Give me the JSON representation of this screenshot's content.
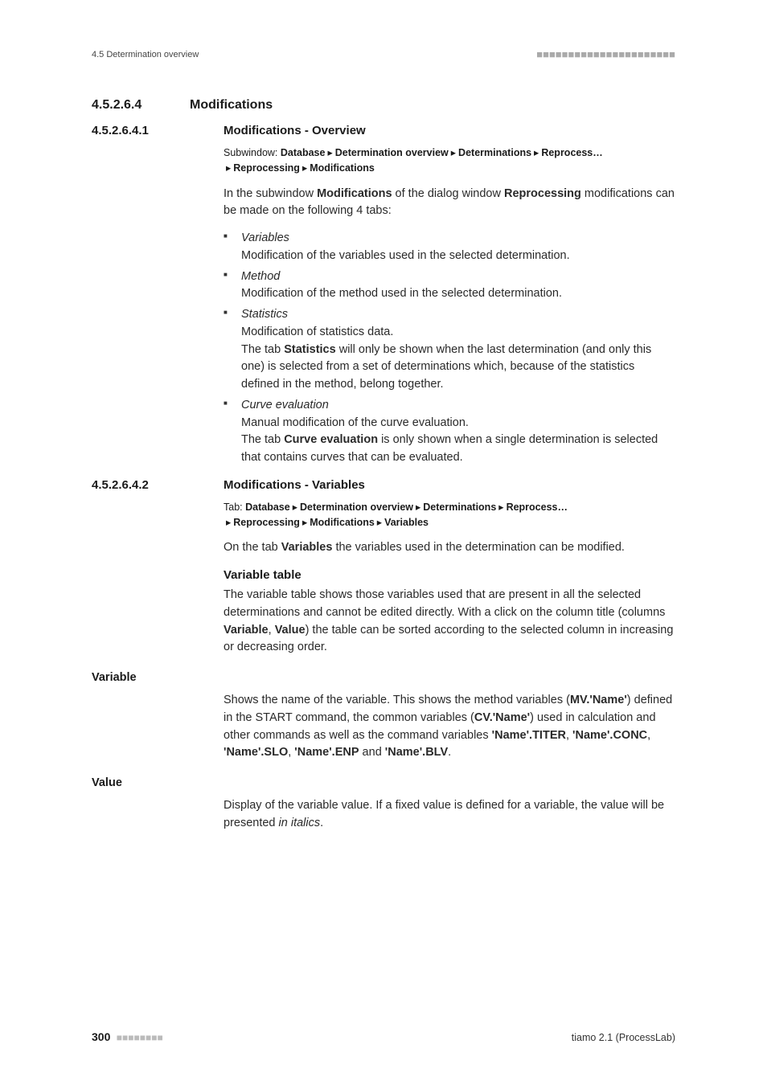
{
  "header": {
    "left": "4.5 Determination overview",
    "dashes": "■■■■■■■■■■■■■■■■■■■■■■"
  },
  "section_h3": {
    "num": "4.5.2.6.4",
    "title": "Modifications"
  },
  "section_1": {
    "num": "4.5.2.6.4.1",
    "title": "Modifications - Overview",
    "breadcrumb_label": "Subwindow: ",
    "breadcrumb_parts": [
      "Database",
      "Determination overview",
      "Determinations",
      "Reprocess…",
      "Reprocessing",
      "Modifications"
    ],
    "intro_prefix": "In the subwindow ",
    "intro_bold1": "Modifications",
    "intro_mid": " of the dialog window ",
    "intro_bold2": "Reprocessing",
    "intro_suffix": " modifications can be made on the following 4 tabs:",
    "bullets": {
      "b1_title": "Variables",
      "b1_line": "Modification of the variables used in the selected determination.",
      "b2_title": "Method",
      "b2_line": "Modification of the method used in the selected determination.",
      "b3_title": "Statistics",
      "b3_line1": "Modification of statistics data.",
      "b3_line2a": "The tab ",
      "b3_line2b": "Statistics",
      "b3_line2c": " will only be shown when the last determination (and only this one) is selected from a set of determinations which, because of the statistics defined in the method, belong together.",
      "b4_title": "Curve evaluation",
      "b4_line1": "Manual modification of the curve evaluation.",
      "b4_line2a": "The tab ",
      "b4_line2b": "Curve evaluation",
      "b4_line2c": " is only shown when a single determination is selected that contains curves that can be evaluated."
    }
  },
  "section_2": {
    "num": "4.5.2.6.4.2",
    "title": "Modifications - Variables",
    "breadcrumb_label": "Tab: ",
    "breadcrumb_parts": [
      "Database",
      "Determination overview",
      "Determinations",
      "Reprocess…",
      "Reprocessing",
      "Modifications",
      "Variables"
    ],
    "intro_a": "On the tab ",
    "intro_b": "Variables",
    "intro_c": " the variables used in the determination can be modified.",
    "subhead": "Variable table",
    "vt_para_a": "The variable table shows those variables used that are present in all the selected determinations and cannot be edited directly. With a click on the column title (columns ",
    "vt_para_b": "Variable",
    "vt_para_c": ", ",
    "vt_para_d": "Value",
    "vt_para_e": ") the table can be sorted according to the selected column in increasing or decreasing order.",
    "term1": "Variable",
    "term1_para_a": "Shows the name of the variable. This shows the method variables (",
    "term1_para_b": "MV.'Name'",
    "term1_para_c": ") defined in the START command, the common variables (",
    "term1_para_d": "CV.'Name'",
    "term1_para_e": ") used in calculation and other commands as well as the command variables ",
    "term1_para_f": "'Name'.TITER",
    "term1_para_g": ", ",
    "term1_para_h": "'Name'.CONC",
    "term1_para_i": ", ",
    "term1_para_j": "'Name'.SLO",
    "term1_para_k": ", ",
    "term1_para_l": "'Name'.ENP",
    "term1_para_m": " and ",
    "term1_para_n": "'Name'.BLV",
    "term1_para_o": ".",
    "term2": "Value",
    "term2_para_a": "Display of the variable value. If a fixed value is defined for a variable, the value will be presented ",
    "term2_para_b": "in italics",
    "term2_para_c": "."
  },
  "footer": {
    "page": "300",
    "dashes": "■■■■■■■■",
    "right": "tiamo 2.1 (ProcessLab)"
  }
}
